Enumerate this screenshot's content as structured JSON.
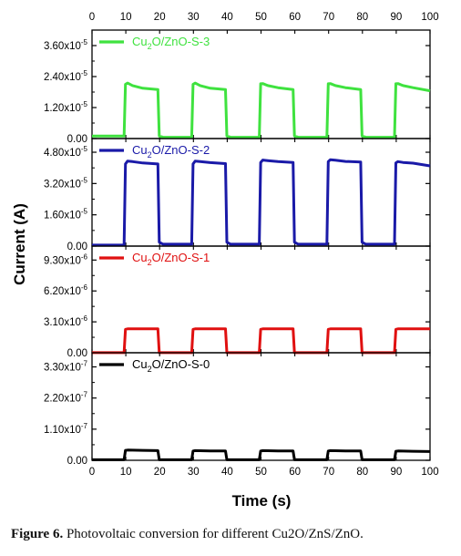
{
  "caption": {
    "label": "Figure 6.",
    "text": "Photovoltaic conversion for different Cu2O/ZnS/ZnO."
  },
  "chart_data": [
    {
      "type": "line",
      "series": [
        {
          "name": "Cu2O/ZnO-S-3",
          "color": "#3fe23f",
          "x": [
            0,
            9.5,
            9.9,
            10.5,
            12,
            15,
            19.5,
            19.9,
            21,
            29.5,
            29.9,
            30.5,
            32,
            35,
            39.5,
            39.9,
            41,
            49.5,
            49.9,
            50.5,
            52,
            55,
            59.5,
            59.9,
            61,
            69.5,
            69.9,
            70.5,
            72,
            75,
            79.5,
            79.9,
            81,
            89.5,
            89.9,
            90.5,
            92,
            95,
            100
          ],
          "y": [
            1e-06,
            1e-06,
            2.1e-05,
            2.15e-05,
            2.05e-05,
            1.95e-05,
            1.9e-05,
            1e-06,
            5e-07,
            5e-07,
            2.1e-05,
            2.15e-05,
            2.05e-05,
            1.95e-05,
            1.9e-05,
            1e-06,
            5e-07,
            5e-07,
            2.12e-05,
            2.13e-05,
            2.05e-05,
            1.97e-05,
            1.9e-05,
            1e-06,
            5e-07,
            5e-07,
            2.12e-05,
            2.13e-05,
            2.05e-05,
            1.97e-05,
            1.9e-05,
            1e-06,
            5e-07,
            5e-07,
            2.12e-05,
            2.13e-05,
            2.05e-05,
            1.97e-05,
            1.85e-05
          ]
        }
      ],
      "xlim": [
        0,
        100
      ],
      "ylim": [
        0,
        4.2e-05
      ],
      "yticks": [
        "0.00",
        "1.20x10",
        "2.40x10",
        "3.60x10"
      ],
      "ytick_values": [
        0,
        1.2e-05,
        2.4e-05,
        3.6e-05
      ],
      "ytick_exponent": "-5"
    },
    {
      "type": "line",
      "series": [
        {
          "name": "Cu2O/ZnO-S-2",
          "color": "#1a1aa8",
          "x": [
            0,
            9.5,
            9.9,
            10.5,
            12,
            15,
            19.5,
            19.9,
            21,
            29.5,
            29.9,
            30.5,
            32,
            35,
            39.5,
            39.9,
            41,
            49.5,
            49.9,
            50.5,
            52,
            55,
            59.5,
            59.9,
            61,
            69.5,
            69.9,
            70.5,
            72,
            75,
            79.5,
            79.9,
            81,
            89.5,
            89.9,
            90.5,
            92,
            95,
            100
          ],
          "y": [
            5e-07,
            5e-07,
            4.2e-05,
            4.35e-05,
            4.32e-05,
            4.25e-05,
            4.2e-05,
            2e-06,
            1e-06,
            1e-06,
            4.2e-05,
            4.35e-05,
            4.32e-05,
            4.27e-05,
            4.22e-05,
            2e-06,
            1e-06,
            1e-06,
            4.28e-05,
            4.4e-05,
            4.37e-05,
            4.32e-05,
            4.28e-05,
            2e-06,
            1e-06,
            1e-06,
            4.32e-05,
            4.42e-05,
            4.39e-05,
            4.33e-05,
            4.3e-05,
            2e-06,
            1e-06,
            1e-06,
            4.25e-05,
            4.32e-05,
            4.28e-05,
            4.24e-05,
            4.1e-05
          ]
        }
      ],
      "xlim": [
        0,
        100
      ],
      "ylim": [
        0,
        5.5e-05
      ],
      "yticks": [
        "0.00",
        "1.60x10",
        "3.20x10",
        "4.80x10"
      ],
      "ytick_values": [
        0,
        1.6e-05,
        3.2e-05,
        4.8e-05
      ],
      "ytick_exponent": "-5"
    },
    {
      "type": "line",
      "series": [
        {
          "name": "Cu2O/ZnO-S-1",
          "color": "#e01010",
          "x": [
            0,
            9.5,
            9.9,
            10.5,
            15,
            19.5,
            19.9,
            29.5,
            29.9,
            30.5,
            35,
            39.5,
            39.9,
            49.5,
            49.9,
            50.5,
            55,
            59.5,
            59.9,
            69.5,
            69.9,
            70.5,
            75,
            79.5,
            79.9,
            89.5,
            89.9,
            90.5,
            95,
            100
          ],
          "y": [
            1e-08,
            1e-08,
            2.35e-06,
            2.4e-06,
            2.4e-06,
            2.4e-06,
            1e-08,
            1e-08,
            2.35e-06,
            2.4e-06,
            2.4e-06,
            2.4e-06,
            1e-08,
            1e-08,
            2.35e-06,
            2.4e-06,
            2.4e-06,
            2.4e-06,
            1e-08,
            1e-08,
            2.35e-06,
            2.4e-06,
            2.4e-06,
            2.4e-06,
            1e-08,
            1e-08,
            2.35e-06,
            2.4e-06,
            2.4e-06,
            2.4e-06
          ]
        }
      ],
      "xlim": [
        0,
        100
      ],
      "ylim": [
        0,
        1.07e-05
      ],
      "yticks": [
        "0.00",
        "3.10x10",
        "6.20x10",
        "9.30x10"
      ],
      "ytick_values": [
        0,
        3.1e-06,
        6.2e-06,
        9.3e-06
      ],
      "ytick_exponent": "-6"
    },
    {
      "type": "line",
      "series": [
        {
          "name": "Cu2O/ZnO-S-0",
          "color": "#000000",
          "x": [
            0,
            9.5,
            9.9,
            10.5,
            15,
            19.5,
            19.9,
            29.5,
            29.9,
            30.5,
            35,
            39.5,
            39.9,
            49.5,
            49.9,
            50.5,
            55,
            59.5,
            59.9,
            69.5,
            69.9,
            70.5,
            75,
            79.5,
            79.9,
            89.5,
            89.9,
            90.5,
            95,
            100
          ],
          "y": [
            2e-09,
            2e-09,
            3.5e-08,
            3.6e-08,
            3.5e-08,
            3.4e-08,
            2e-09,
            2e-09,
            3.3e-08,
            3.4e-08,
            3.3e-08,
            3.3e-08,
            2e-09,
            2e-09,
            3.3e-08,
            3.4e-08,
            3.3e-08,
            3.3e-08,
            2e-09,
            2e-09,
            3.3e-08,
            3.4e-08,
            3.3e-08,
            3.3e-08,
            2e-09,
            2e-09,
            3.2e-08,
            3.3e-08,
            3.2e-08,
            3.1e-08
          ]
        }
      ],
      "xlim": [
        0,
        100
      ],
      "ylim": [
        0,
        3.8e-07
      ],
      "yticks": [
        "0.00",
        "1.10x10",
        "2.20x10",
        "3.30x10"
      ],
      "ytick_values": [
        0,
        1.1e-07,
        2.2e-07,
        3.3e-07
      ],
      "ytick_exponent": "-7"
    }
  ],
  "axes": {
    "xlabel": "Time (s)",
    "ylabel": "Current (A)",
    "xticks": [
      "0",
      "10",
      "20",
      "30",
      "40",
      "50",
      "60",
      "70",
      "80",
      "90",
      "100"
    ],
    "xtick_values": [
      0,
      10,
      20,
      30,
      40,
      50,
      60,
      70,
      80,
      90,
      100
    ]
  }
}
